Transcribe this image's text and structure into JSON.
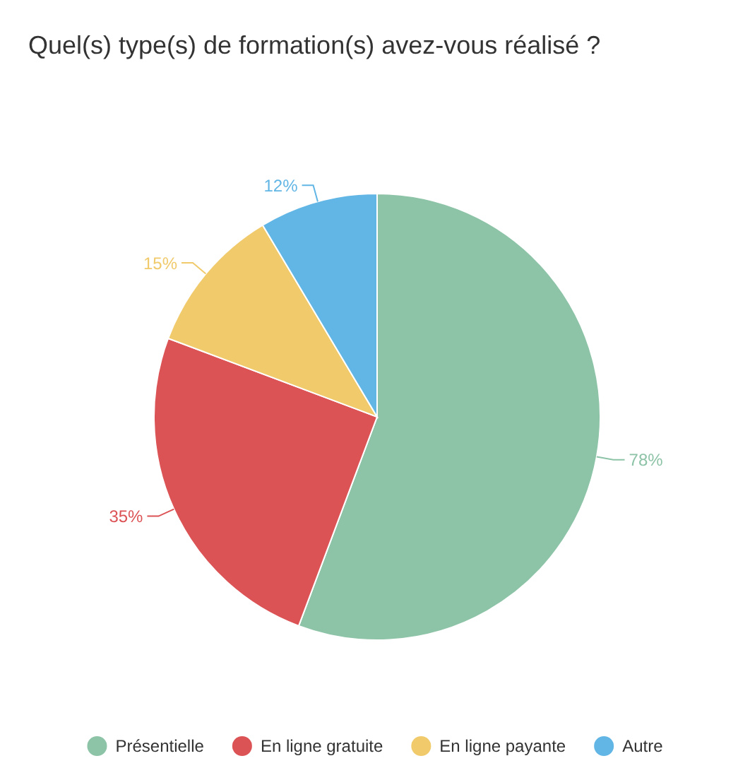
{
  "chart_data": {
    "type": "pie",
    "title": "Quel(s) type(s) de formation(s) avez-vous réalisé ?",
    "categories": [
      "Présentielle",
      "En ligne gratuite",
      "En ligne payante",
      "Autre"
    ],
    "values": [
      78,
      35,
      15,
      12
    ],
    "value_labels": [
      "78%",
      "35%",
      "15%",
      "12%"
    ],
    "colors": [
      "#8dc3a7",
      "#dc5356",
      "#f0ca6b",
      "#62b6e5"
    ],
    "legend": "bottom"
  }
}
